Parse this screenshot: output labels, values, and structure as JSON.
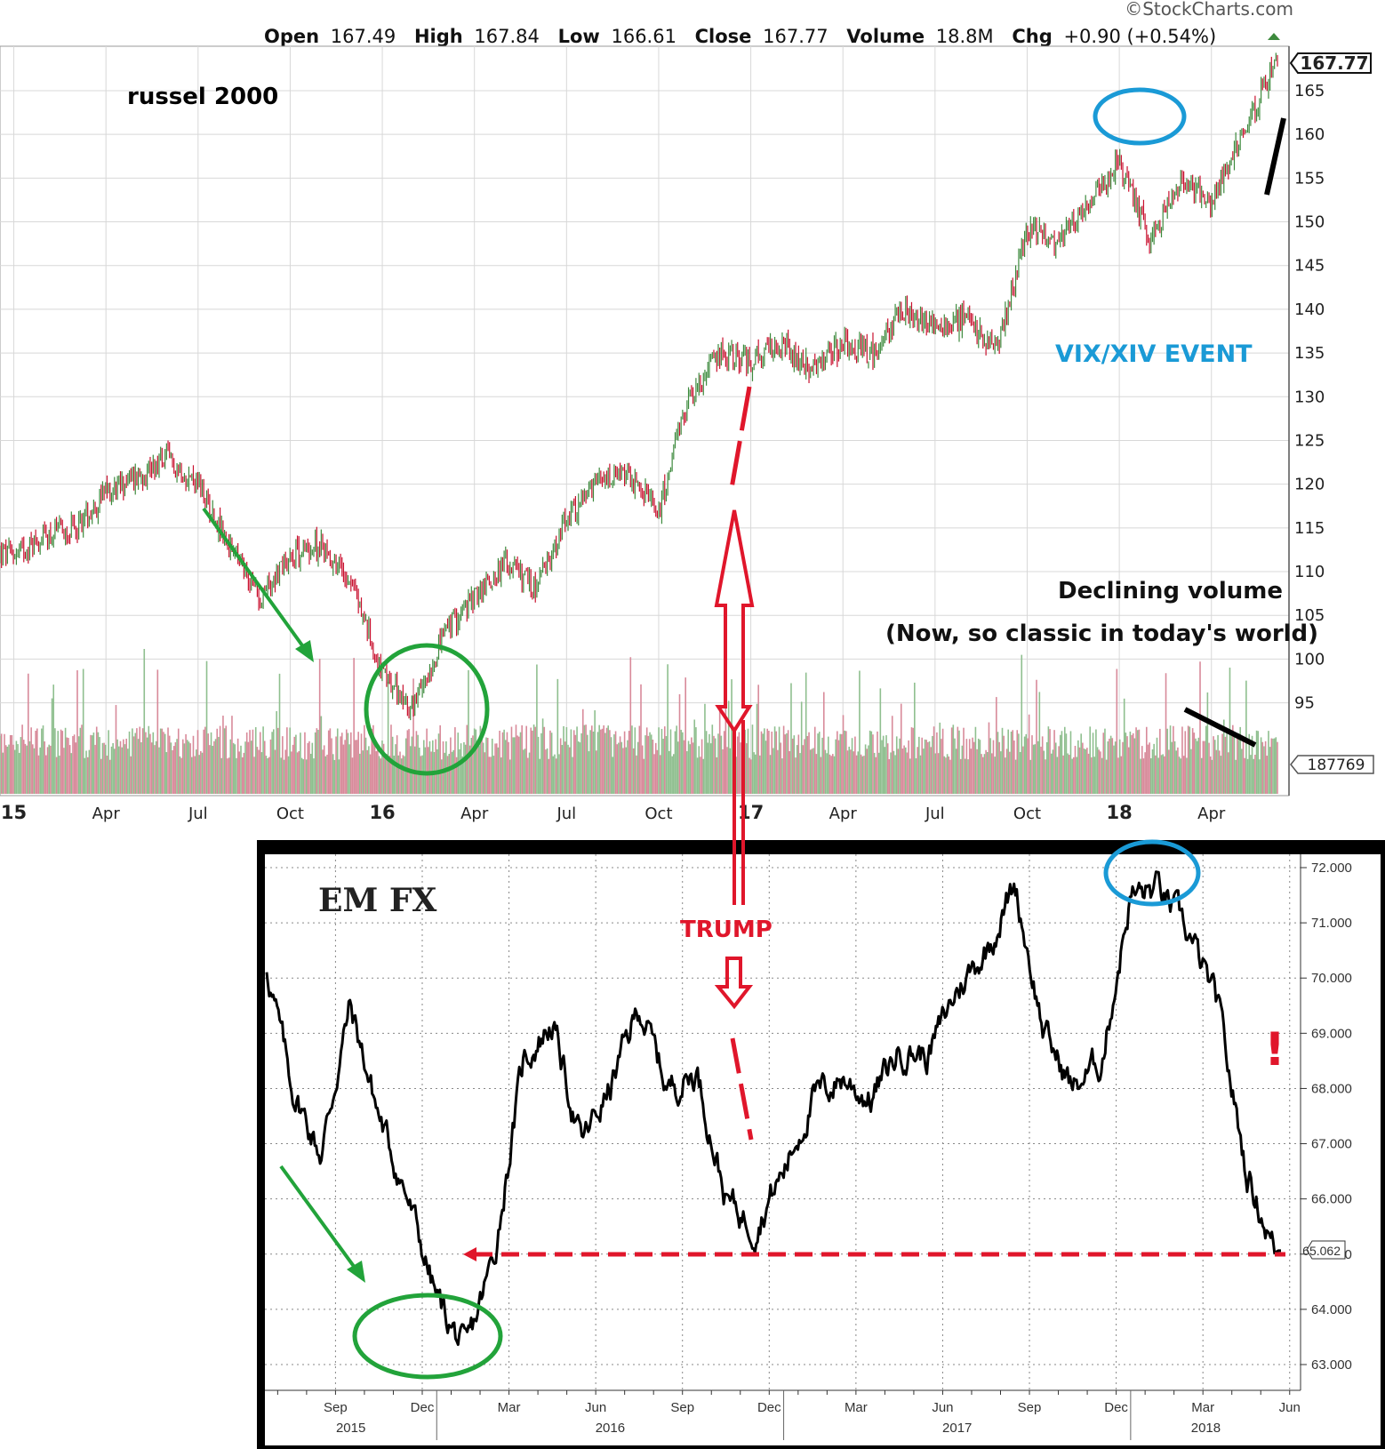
{
  "chart_data": [
    {
      "type": "candlestick",
      "source_label": "©StockCharts.com",
      "quote": {
        "open_label": "Open",
        "open": "167.49",
        "high_label": "High",
        "high": "167.84",
        "low_label": "Low",
        "low": "166.61",
        "close_label": "Close",
        "close": "167.77",
        "volume_label": "Volume",
        "volume": "18.8M",
        "chg_label": "Chg",
        "chg": "+0.90 (+0.54%)"
      },
      "last_price_label": "167.77",
      "last_volume_label": "187769",
      "y_ticks": [
        95,
        100,
        105,
        110,
        115,
        120,
        125,
        130,
        135,
        140,
        145,
        150,
        155,
        160,
        165
      ],
      "x_tick_labels": [
        "15",
        "Apr",
        "Jul",
        "Oct",
        "16",
        "Apr",
        "Jul",
        "Oct",
        "17",
        "Apr",
        "Jul",
        "Oct",
        "18",
        "Apr"
      ],
      "x_tick_bold": [
        "15",
        "16",
        "17",
        "18"
      ],
      "series": [
        {
          "x": [
            "2015-01",
            "2015-02",
            "2015-03",
            "2015-04",
            "2015-05",
            "2015-06",
            "2015-07",
            "2015-08",
            "2015-09",
            "2015-10",
            "2015-11",
            "2015-12",
            "2016-01",
            "2016-02",
            "2016-03",
            "2016-04",
            "2016-05",
            "2016-06",
            "2016-07",
            "2016-08",
            "2016-09",
            "2016-10",
            "2016-11",
            "2016-12",
            "2017-01",
            "2017-02",
            "2017-03",
            "2017-04",
            "2017-05",
            "2017-06",
            "2017-07",
            "2017-08",
            "2017-09",
            "2017-10",
            "2017-11",
            "2017-12",
            "2018-01",
            "2018-02",
            "2018-03",
            "2018-04",
            "2018-05",
            "2018-06"
          ],
          "y": [
            112,
            114,
            115,
            119,
            121,
            123,
            120,
            113,
            107,
            112,
            113,
            109,
            98,
            94,
            103,
            107,
            111,
            108,
            116,
            120,
            121,
            117,
            130,
            135,
            134,
            136,
            133,
            136,
            135,
            140,
            138,
            139,
            135,
            149,
            148,
            152,
            157,
            148,
            155,
            152,
            160,
            167.77
          ]
        }
      ]
    },
    {
      "type": "line",
      "title": "EM FX",
      "y_ticks": [
        "63.000",
        "64.000",
        "65.000",
        "66.000",
        "67.000",
        "68.000",
        "69.000",
        "70.000",
        "71.000",
        "72.000"
      ],
      "last_value_label": "65.062",
      "x_tick_labels": [
        "Sep",
        "Dec",
        "Mar",
        "Jun",
        "Sep",
        "Dec",
        "Mar",
        "Jun",
        "Sep",
        "Dec",
        "Mar",
        "Jun"
      ],
      "year_labels": [
        "2015",
        "2016",
        "2017",
        "2018"
      ],
      "series": [
        {
          "x": [
            "2015-07",
            "2015-08",
            "2015-09",
            "2015-10",
            "2015-11",
            "2015-12",
            "2016-01",
            "2016-02",
            "2016-03",
            "2016-04",
            "2016-05",
            "2016-06",
            "2016-07",
            "2016-08",
            "2016-09",
            "2016-10",
            "2016-11",
            "2016-12",
            "2017-01",
            "2017-02",
            "2017-03",
            "2017-04",
            "2017-05",
            "2017-06",
            "2017-07",
            "2017-08",
            "2017-09",
            "2017-10",
            "2017-11",
            "2017-12",
            "2018-01",
            "2018-02",
            "2018-03",
            "2018-04",
            "2018-05",
            "2018-06"
          ],
          "y": [
            70.5,
            68.0,
            66.8,
            69.5,
            67.5,
            66.0,
            64.2,
            63.2,
            65.0,
            68.5,
            69.2,
            67.0,
            68.0,
            69.5,
            68.0,
            68.3,
            66.0,
            65.5,
            66.5,
            67.8,
            68.2,
            67.8,
            68.7,
            68.6,
            69.8,
            70.5,
            71.7,
            69.0,
            68.0,
            68.5,
            71.5,
            71.6,
            70.8,
            69.5,
            66.5,
            65.062
          ]
        }
      ]
    }
  ],
  "annotations": {
    "russel": "russel 2000",
    "vix": "VIX/XIV EVENT",
    "volume1": "Declining volume",
    "volume2": "(Now, so classic in today's world)",
    "trump": "TRUMP",
    "exclaim": "!"
  },
  "colors": {
    "up": "#3d8a3d",
    "down": "#c8102e",
    "vol_up": "#8fbf8f",
    "vol_down": "#d88a9a",
    "annotation_green": "#22a33a",
    "annotation_blue": "#1a9ad6",
    "annotation_red": "#e0162b",
    "em_line": "#000000"
  }
}
